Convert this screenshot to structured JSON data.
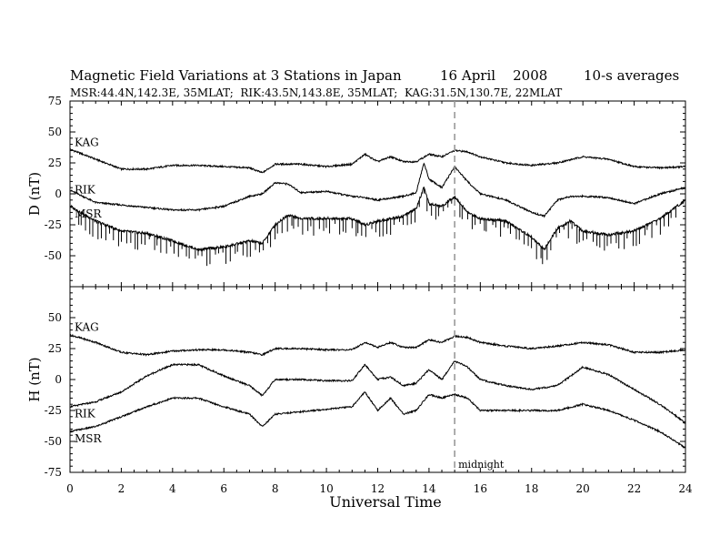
{
  "header": {
    "title": "Magnetic Field Variations at 3 Stations in Japan",
    "date": "16 April    2008",
    "averaging": "10-s averages",
    "subtitle": "MSR:44.4N,142.3E, 35MLAT;  RIK:43.5N,143.8E, 35MLAT;  KAG:31.5N,130.7E, 22MLAT"
  },
  "chart_data": {
    "type": "line",
    "xlabel": "Universal Time",
    "xlim": [
      0,
      24
    ],
    "x_ticks": [
      "0",
      "2",
      "4",
      "6",
      "8",
      "10",
      "12",
      "14",
      "16",
      "18",
      "20",
      "22",
      "24"
    ],
    "annotation": {
      "x": 15,
      "label": "midnight",
      "style": "dashed vertical line"
    },
    "colors": {
      "lines": "#000000",
      "midnight_line": "#999999"
    },
    "panels": [
      {
        "ylabel": "D (nT)",
        "ylim": [
          -75,
          75
        ],
        "y_ticks": [
          "75",
          "50",
          "25",
          "0",
          "-25",
          "-50"
        ],
        "series": [
          {
            "name": "KAG",
            "x": [
              0,
              1,
              2,
              3,
              4,
              5,
              6,
              7,
              7.5,
              8,
              9,
              10,
              11,
              11.5,
              12,
              12.5,
              13,
              13.5,
              14,
              14.5,
              15,
              15.5,
              16,
              17,
              18,
              19,
              20,
              21,
              22,
              23,
              24
            ],
            "y": [
              36,
              28,
              20,
              20,
              23,
              23,
              22,
              21,
              17,
              24,
              24,
              22,
              24,
              32,
              26,
              30,
              26,
              26,
              32,
              30,
              35,
              34,
              30,
              25,
              23,
              25,
              30,
              28,
              22,
              21,
              22
            ]
          },
          {
            "name": "RIK",
            "x": [
              0,
              1,
              2,
              3,
              4,
              5,
              6,
              7,
              7.5,
              8,
              8.5,
              9,
              10,
              11,
              11.5,
              12,
              13,
              13.5,
              13.8,
              14,
              14.5,
              15,
              15.5,
              16,
              17,
              18,
              18.5,
              19,
              19.5,
              20,
              21,
              22,
              23,
              24
            ],
            "y": [
              3,
              -7,
              -9,
              -11,
              -13,
              -13,
              -10,
              -2,
              0,
              9,
              8,
              1,
              2,
              -2,
              -3,
              -5,
              -2,
              1,
              25,
              12,
              5,
              22,
              10,
              0,
              -5,
              -15,
              -18,
              -5,
              -2,
              -2,
              -3,
              -8,
              0,
              5
            ]
          },
          {
            "name": "MSR",
            "x": [
              0,
              1,
              2,
              3,
              4,
              5,
              6,
              7,
              7.5,
              8,
              8.5,
              9,
              10,
              11,
              11.5,
              12,
              12.5,
              13,
              13.5,
              13.8,
              14,
              14.5,
              15,
              15.5,
              16,
              17,
              18,
              18.5,
              19,
              19.5,
              20,
              21,
              22,
              23,
              24
            ],
            "y": [
              -10,
              -22,
              -30,
              -32,
              -38,
              -45,
              -43,
              -38,
              -40,
              -25,
              -17,
              -20,
              -20,
              -20,
              -25,
              -22,
              -20,
              -18,
              -12,
              5,
              -8,
              -10,
              -2,
              -15,
              -20,
              -22,
              -35,
              -45,
              -28,
              -22,
              -30,
              -33,
              -30,
              -20,
              -5
            ]
          }
        ]
      },
      {
        "ylabel": "H (nT)",
        "ylim": [
          -75,
          75
        ],
        "y_ticks": [
          "50",
          "25",
          "0",
          "-25",
          "-50",
          "-75"
        ],
        "series": [
          {
            "name": "KAG",
            "x": [
              0,
              1,
              2,
              3,
              4,
              5,
              6,
              7,
              7.5,
              8,
              9,
              10,
              11,
              11.5,
              12,
              12.5,
              13,
              13.5,
              14,
              14.5,
              15,
              15.5,
              16,
              17,
              18,
              19,
              20,
              21,
              22,
              23,
              24
            ],
            "y": [
              36,
              30,
              22,
              20,
              23,
              24,
              24,
              22,
              20,
              25,
              25,
              24,
              24,
              30,
              26,
              30,
              26,
              26,
              32,
              30,
              35,
              34,
              30,
              27,
              25,
              27,
              30,
              28,
              22,
              22,
              24
            ]
          },
          {
            "name": "RIK",
            "x": [
              0,
              1,
              2,
              3,
              4,
              5,
              6,
              7,
              7.5,
              8,
              9,
              10,
              11,
              11.5,
              12,
              12.5,
              13,
              13.5,
              14,
              14.5,
              15,
              15.5,
              16,
              17,
              18,
              19,
              20,
              21,
              22,
              23,
              24
            ],
            "y": [
              -22,
              -18,
              -10,
              3,
              12,
              12,
              3,
              -5,
              -13,
              0,
              0,
              -1,
              -1,
              12,
              0,
              2,
              -5,
              -3,
              8,
              0,
              15,
              10,
              0,
              -5,
              -8,
              -5,
              10,
              4,
              -8,
              -20,
              -35
            ]
          },
          {
            "name": "MSR",
            "x": [
              0,
              1,
              2,
              3,
              4,
              5,
              6,
              7,
              7.5,
              8,
              9,
              10,
              11,
              11.5,
              12,
              12.5,
              13,
              13.5,
              14,
              14.5,
              15,
              15.5,
              16,
              17,
              18,
              19,
              20,
              21,
              22,
              23,
              24
            ],
            "y": [
              -42,
              -38,
              -30,
              -22,
              -15,
              -15,
              -22,
              -28,
              -38,
              -28,
              -26,
              -24,
              -22,
              -10,
              -25,
              -15,
              -28,
              -25,
              -12,
              -15,
              -12,
              -15,
              -25,
              -25,
              -25,
              -25,
              -20,
              -25,
              -33,
              -42,
              -55
            ]
          }
        ]
      }
    ]
  }
}
